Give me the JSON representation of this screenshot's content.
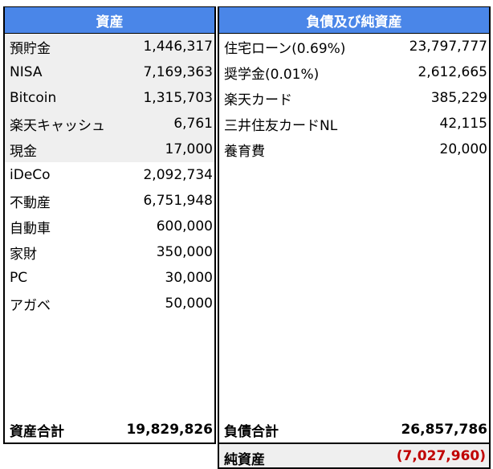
{
  "assets": {
    "header": "資産",
    "items": [
      {
        "label": "預貯金",
        "value": "1,446,317",
        "shaded": true
      },
      {
        "label": "NISA",
        "value": "7,169,363",
        "shaded": true
      },
      {
        "label": "Bitcoin",
        "value": "1,315,703",
        "shaded": true
      },
      {
        "label": "楽天キャッシュ",
        "value": "6,761",
        "shaded": true
      },
      {
        "label": "現金",
        "value": "17,000",
        "shaded": true
      },
      {
        "label": "iDeCo",
        "value": "2,092,734",
        "shaded": false
      },
      {
        "label": "不動産",
        "value": "6,751,948",
        "shaded": false
      },
      {
        "label": "自動車",
        "value": "600,000",
        "shaded": false
      },
      {
        "label": "家財",
        "value": "350,000",
        "shaded": false
      },
      {
        "label": "PC",
        "value": "30,000",
        "shaded": false
      },
      {
        "label": "アガベ",
        "value": "50,000",
        "shaded": false
      }
    ],
    "total_label": "資産合計",
    "total_value": "19,829,826"
  },
  "liabilities": {
    "header": "負債及び純資産",
    "items": [
      {
        "label": "住宅ローン(0.69%)",
        "value": "23,797,777"
      },
      {
        "label": "奨学金(0.01%)",
        "value": "2,612,665"
      },
      {
        "label": "楽天カード",
        "value": "385,229"
      },
      {
        "label": "三井住友カードNL",
        "value": "42,115"
      },
      {
        "label": "養育費",
        "value": "20,000"
      }
    ],
    "total_label": "負債合計",
    "total_value": "26,857,786"
  },
  "net_assets": {
    "label": "純資産",
    "value": "(7,027,960)"
  },
  "colors": {
    "header_bg": "#4a86e8",
    "shade_bg": "#efefef",
    "negative": "#c00000"
  }
}
